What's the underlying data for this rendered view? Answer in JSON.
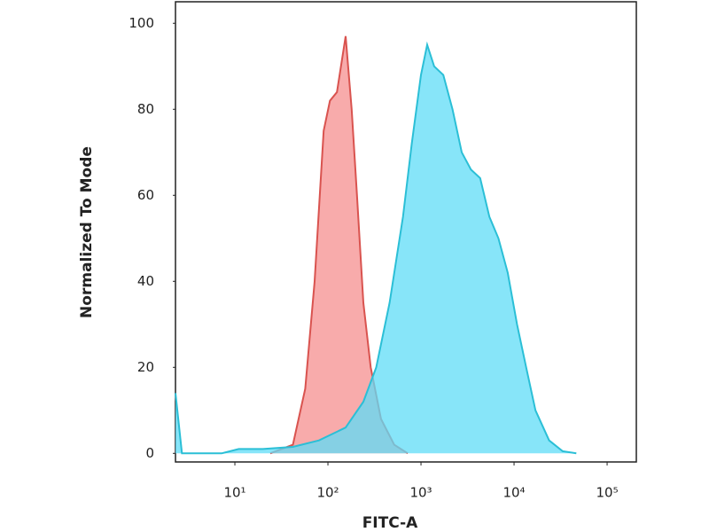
{
  "chart_data": {
    "type": "area",
    "x_label": "FITC-A",
    "y_label": "Normalized To Mode",
    "xscale": "log",
    "xlim": [
      2.3,
      206000
    ],
    "ylim": [
      -2,
      105
    ],
    "xticks": [
      {
        "value": 10,
        "label": "10¹"
      },
      {
        "value": 100,
        "label": "10²"
      },
      {
        "value": 1000,
        "label": "10³"
      },
      {
        "value": 10000,
        "label": "10⁴"
      },
      {
        "value": 100000,
        "label": "10⁵"
      }
    ],
    "yticks": [
      0,
      20,
      40,
      60,
      80,
      100
    ],
    "series": [
      {
        "color": "#d9534f",
        "fill": "#f58f8f",
        "x": [
          24,
          42,
          57,
          72,
          90,
          105,
          125,
          155,
          180,
          205,
          240,
          288,
          372,
          515,
          720
        ],
        "values": [
          0,
          2,
          15,
          40,
          75,
          82,
          84,
          97,
          80,
          60,
          35,
          20,
          8,
          2,
          0
        ]
      },
      {
        "color": "#2bbfd6",
        "fill": "#5fdcf7",
        "x": [
          2.3,
          2.7,
          7.2,
          11,
          20,
          42,
          80,
          155,
          240,
          330,
          460,
          640,
          795,
          1000,
          1165,
          1385,
          1735,
          2180,
          2740,
          3440,
          4320,
          5430,
          6800,
          8560,
          10760,
          13500,
          17000,
          23800,
          33300,
          46700
        ],
        "values": [
          14,
          0,
          0,
          1,
          1,
          1.5,
          3,
          6,
          12,
          20,
          35,
          55,
          72,
          88,
          95,
          90,
          88,
          80,
          70,
          66,
          64,
          55,
          50,
          42,
          30,
          20,
          10,
          3,
          0.5,
          0
        ]
      }
    ]
  }
}
